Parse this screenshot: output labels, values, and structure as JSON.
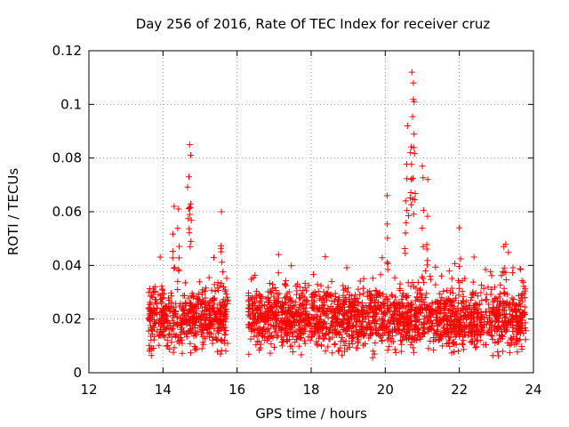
{
  "chart_data": {
    "type": "scatter",
    "title": "Day 256 of 2016, Rate Of TEC Index for receiver cruz",
    "xlabel": "GPS time / hours",
    "ylabel": "ROTI / TECUs",
    "xlim": [
      12,
      24
    ],
    "ylim": [
      0,
      0.12
    ],
    "xticks": [
      12,
      14,
      16,
      18,
      20,
      22,
      24
    ],
    "xtick_labels": [
      "12",
      "14",
      "16",
      "18",
      "20",
      "22",
      "24"
    ],
    "yticks": [
      0,
      0.02,
      0.04,
      0.06,
      0.08,
      0.1,
      0.12
    ],
    "ytick_labels": [
      "0",
      "0.02",
      "0.04",
      "0.06",
      "0.08",
      "0.1",
      "0.12"
    ],
    "grid": true,
    "marker": "+",
    "marker_color": "#ff0000",
    "series": [
      {
        "name": "ROTI",
        "segments": [
          {
            "t_start": 13.6,
            "t_end": 15.75,
            "typical_min": 0.01,
            "typical_max": 0.03
          },
          {
            "t_start": 16.3,
            "t_end": 23.8,
            "typical_min": 0.01,
            "typical_max": 0.03
          }
        ],
        "peaks": [
          {
            "x": 14.3,
            "y": 0.062
          },
          {
            "x": 14.42,
            "y": 0.061
          },
          {
            "x": 14.72,
            "y": 0.085
          },
          {
            "x": 14.75,
            "y": 0.081
          },
          {
            "x": 14.7,
            "y": 0.073
          },
          {
            "x": 15.58,
            "y": 0.06
          },
          {
            "x": 20.6,
            "y": 0.092
          },
          {
            "x": 20.72,
            "y": 0.112
          },
          {
            "x": 20.76,
            "y": 0.108
          },
          {
            "x": 20.78,
            "y": 0.101
          },
          {
            "x": 20.68,
            "y": 0.082
          },
          {
            "x": 21.0,
            "y": 0.077
          },
          {
            "x": 21.15,
            "y": 0.072
          },
          {
            "x": 22.0,
            "y": 0.054
          },
          {
            "x": 20.05,
            "y": 0.066
          },
          {
            "x": 20.55,
            "y": 0.064
          },
          {
            "x": 23.2,
            "y": 0.047
          }
        ],
        "minimum_values_near": 0.003
      }
    ]
  }
}
